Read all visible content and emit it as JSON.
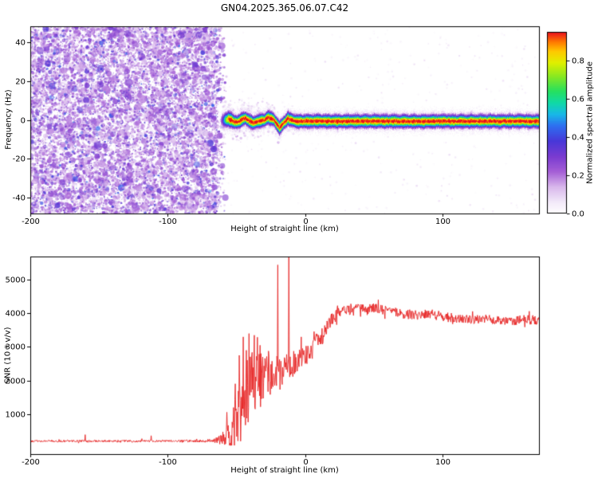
{
  "figure": {
    "title": "GN04.2025.365.06.07.C42",
    "background": "#ffffff"
  },
  "chart_data": [
    {
      "type": "heatmap",
      "title": "GN04.2025.365.06.07.C42",
      "xlabel": "Height of straight line (km)",
      "ylabel": "Frequency (Hz)",
      "xlim": [
        -200,
        170
      ],
      "ylim": [
        -48,
        48
      ],
      "xticks": [
        -200,
        -100,
        0,
        100
      ],
      "xtick_labels": [
        "-200",
        "-100",
        "0",
        "100"
      ],
      "yticks": [
        -40,
        -20,
        0,
        20,
        40
      ],
      "ytick_labels": [
        "-40",
        "-20",
        "0",
        "20",
        "40"
      ],
      "grid": false,
      "colorbar": {
        "label": "Normalized spectral amplitude",
        "vmin": 0.0,
        "vmax": 0.95,
        "ticks": [
          0.0,
          0.2,
          0.4,
          0.6,
          0.8
        ],
        "tick_labels": [
          "0.0",
          "0.2",
          "0.4",
          "0.6",
          "0.8"
        ],
        "colormap_stops": [
          [
            0.0,
            255,
            255,
            255
          ],
          [
            0.06,
            243,
            234,
            249
          ],
          [
            0.14,
            217,
            184,
            236
          ],
          [
            0.22,
            165,
            95,
            214
          ],
          [
            0.3,
            122,
            59,
            208
          ],
          [
            0.38,
            72,
            55,
            216
          ],
          [
            0.46,
            46,
            111,
            240
          ],
          [
            0.52,
            24,
            184,
            232
          ],
          [
            0.58,
            16,
            217,
            166
          ],
          [
            0.64,
            37,
            224,
            96
          ],
          [
            0.72,
            138,
            232,
            32
          ],
          [
            0.79,
            224,
            240,
            0
          ],
          [
            0.85,
            255,
            200,
            0
          ],
          [
            0.9,
            255,
            119,
            0
          ],
          [
            0.95,
            232,
            16,
            30
          ]
        ]
      },
      "noise_region": {
        "description": "dense random purple speckle noise over full frequency range",
        "x_range": [
          -200,
          -57
        ],
        "fade_start": -68,
        "value_range": [
          0.05,
          0.5
        ]
      },
      "signal_band": {
        "description": "narrow high-amplitude spectral trace near 0 Hz, wiggles between -60 and 0 km then flat to right edge",
        "x_start": -63,
        "amp_ramp": [
          -63,
          -56
        ],
        "peak_amplitude": 0.95,
        "sigma_hz": 1.9,
        "center_freq_keypoints": [
          [
            -63,
            -0.3
          ],
          [
            -58,
            0.2
          ],
          [
            -56,
            0.7
          ],
          [
            -53,
            -0.4
          ],
          [
            -50,
            -1.2
          ],
          [
            -47,
            0.2
          ],
          [
            -44,
            1.0
          ],
          [
            -41,
            -0.3
          ],
          [
            -38,
            -1.5
          ],
          [
            -34,
            -0.4
          ],
          [
            -30,
            0.2
          ],
          [
            -27,
            1.4
          ],
          [
            -23,
            0.2
          ],
          [
            -19,
            -3.8
          ],
          [
            -16,
            -1.5
          ],
          [
            -13,
            0.9
          ],
          [
            -10,
            0.0
          ],
          [
            -6,
            -0.6
          ],
          [
            0,
            -0.5
          ],
          [
            40,
            -0.5
          ],
          [
            100,
            -0.5
          ],
          [
            170,
            -0.5
          ]
        ]
      }
    },
    {
      "type": "line",
      "xlabel": "Height of straight line (km)",
      "ylabel": "SNR (10 * v/v)",
      "xlim": [
        -200,
        170
      ],
      "ylim": [
        -200,
        5700
      ],
      "xticks": [
        -200,
        -100,
        0,
        100
      ],
      "xtick_labels": [
        "-200",
        "-100",
        "0",
        "100"
      ],
      "yticks": [
        1000,
        2000,
        3000,
        4000,
        5000
      ],
      "ytick_labels": [
        "1000",
        "2000",
        "3000",
        "4000",
        "5000"
      ],
      "grid": false,
      "line_color": "#e62222",
      "series": [
        {
          "name": "SNR",
          "baseline_keypoints": [
            [
              -200,
              190
            ],
            [
              -150,
              190
            ],
            [
              -120,
              185
            ],
            [
              -100,
              195
            ],
            [
              -80,
              190
            ],
            [
              -72,
              195
            ],
            [
              -66,
              210
            ],
            [
              -62,
              230
            ],
            [
              -58,
              280
            ],
            [
              -55,
              380
            ],
            [
              -52,
              600
            ],
            [
              -49,
              900
            ],
            [
              -46,
              1100
            ],
            [
              -43,
              1400
            ],
            [
              -40,
              1700
            ],
            [
              -37,
              1900
            ],
            [
              -34,
              2000
            ],
            [
              -31,
              2050
            ],
            [
              -28,
              2100
            ],
            [
              -25,
              2150
            ],
            [
              -22,
              2200
            ],
            [
              -19,
              2250
            ],
            [
              -16,
              2300
            ],
            [
              -13,
              2350
            ],
            [
              -10,
              2450
            ],
            [
              -7,
              2550
            ],
            [
              -4,
              2650
            ],
            [
              -1,
              2750
            ],
            [
              2,
              2850
            ],
            [
              5,
              2950
            ],
            [
              8,
              3100
            ],
            [
              11,
              3250
            ],
            [
              14,
              3450
            ],
            [
              17,
              3650
            ],
            [
              20,
              3850
            ],
            [
              23,
              4000
            ],
            [
              26,
              4100
            ],
            [
              30,
              4150
            ],
            [
              35,
              4100
            ],
            [
              40,
              4150
            ],
            [
              45,
              4100
            ],
            [
              50,
              4150
            ],
            [
              55,
              4100
            ],
            [
              60,
              4050
            ],
            [
              70,
              4000
            ],
            [
              80,
              3950
            ],
            [
              90,
              4000
            ],
            [
              100,
              3900
            ],
            [
              110,
              3850
            ],
            [
              120,
              3800
            ],
            [
              130,
              3850
            ],
            [
              140,
              3800
            ],
            [
              150,
              3780
            ],
            [
              160,
              3820
            ],
            [
              170,
              3800
            ]
          ],
          "noise_amplitude_keypoints": [
            [
              -200,
              35
            ],
            [
              -100,
              35
            ],
            [
              -75,
              40
            ],
            [
              -68,
              60
            ],
            [
              -63,
              120
            ],
            [
              -58,
              300
            ],
            [
              -54,
              700
            ],
            [
              -50,
              1100
            ],
            [
              -46,
              1250
            ],
            [
              -42,
              1300
            ],
            [
              -38,
              1250
            ],
            [
              -34,
              1100
            ],
            [
              -30,
              850
            ],
            [
              -26,
              650
            ],
            [
              -22,
              550
            ],
            [
              -18,
              600
            ],
            [
              -14,
              550
            ],
            [
              -10,
              450
            ],
            [
              -6,
              400
            ],
            [
              -2,
              380
            ],
            [
              2,
              360
            ],
            [
              6,
              340
            ],
            [
              10,
              320
            ],
            [
              15,
              300
            ],
            [
              20,
              260
            ],
            [
              25,
              220
            ],
            [
              30,
              190
            ],
            [
              40,
              180
            ],
            [
              60,
              170
            ],
            [
              80,
              160
            ],
            [
              100,
              160
            ],
            [
              130,
              155
            ],
            [
              170,
              155
            ]
          ],
          "spikes": [
            [
              -160,
              380
            ],
            [
              -112,
              350
            ],
            [
              -57,
              1050
            ],
            [
              -51,
              1900
            ],
            [
              -48,
              2750
            ],
            [
              -45,
              3300
            ],
            [
              -43,
              2900
            ],
            [
              -41,
              3400
            ],
            [
              -39,
              2700
            ],
            [
              -37,
              3350
            ],
            [
              -35,
              2600
            ],
            [
              -33,
              3050
            ],
            [
              -31,
              2700
            ],
            [
              -29,
              2500
            ],
            [
              -20,
              5450
            ],
            [
              -12,
              5750
            ],
            [
              -3,
              3300
            ]
          ]
        }
      ]
    }
  ]
}
